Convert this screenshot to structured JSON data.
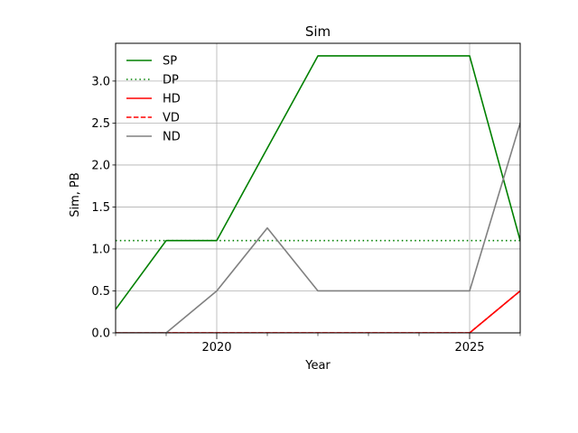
{
  "chart_data": {
    "type": "line",
    "title": "Sim",
    "xlabel": "Year",
    "ylabel": "Sim, PB",
    "xlim": [
      2018,
      2026
    ],
    "ylim": [
      0,
      3.45
    ],
    "xticks": [
      2020,
      2025
    ],
    "xtick_labels": [
      "2020",
      "2025"
    ],
    "yticks": [
      0,
      0.5,
      1.0,
      1.5,
      2.0,
      2.5,
      3.0
    ],
    "ytick_labels": [
      "0.0",
      "0.5",
      "1.0",
      "1.5",
      "2.0",
      "2.5",
      "3.0"
    ],
    "grid": true,
    "legend_position": "top-left",
    "x": [
      2018,
      2019,
      2020,
      2021,
      2022,
      2023,
      2024,
      2025,
      2026
    ],
    "series": [
      {
        "name": "SP",
        "color": "#008000",
        "dash": "solid",
        "values": [
          0.28,
          1.1,
          1.1,
          2.2,
          3.3,
          3.3,
          3.3,
          3.3,
          1.1
        ]
      },
      {
        "name": "DP",
        "color": "#008000",
        "dash": "dotted",
        "values": [
          1.1,
          1.1,
          1.1,
          1.1,
          1.1,
          1.1,
          1.1,
          1.1,
          1.1
        ]
      },
      {
        "name": "HD",
        "color": "#ff0000",
        "dash": "solid",
        "values": [
          0,
          0,
          0,
          0,
          0,
          0,
          0,
          0,
          0.5
        ]
      },
      {
        "name": "VD",
        "color": "#ff0000",
        "dash": "dashed",
        "values": [
          0,
          0,
          0,
          0,
          0,
          0,
          0,
          0,
          0.5
        ]
      },
      {
        "name": "ND",
        "color": "#808080",
        "dash": "solid",
        "values": [
          0,
          0,
          0.5,
          1.25,
          0.5,
          0.5,
          0.5,
          0.5,
          2.5
        ]
      }
    ]
  }
}
